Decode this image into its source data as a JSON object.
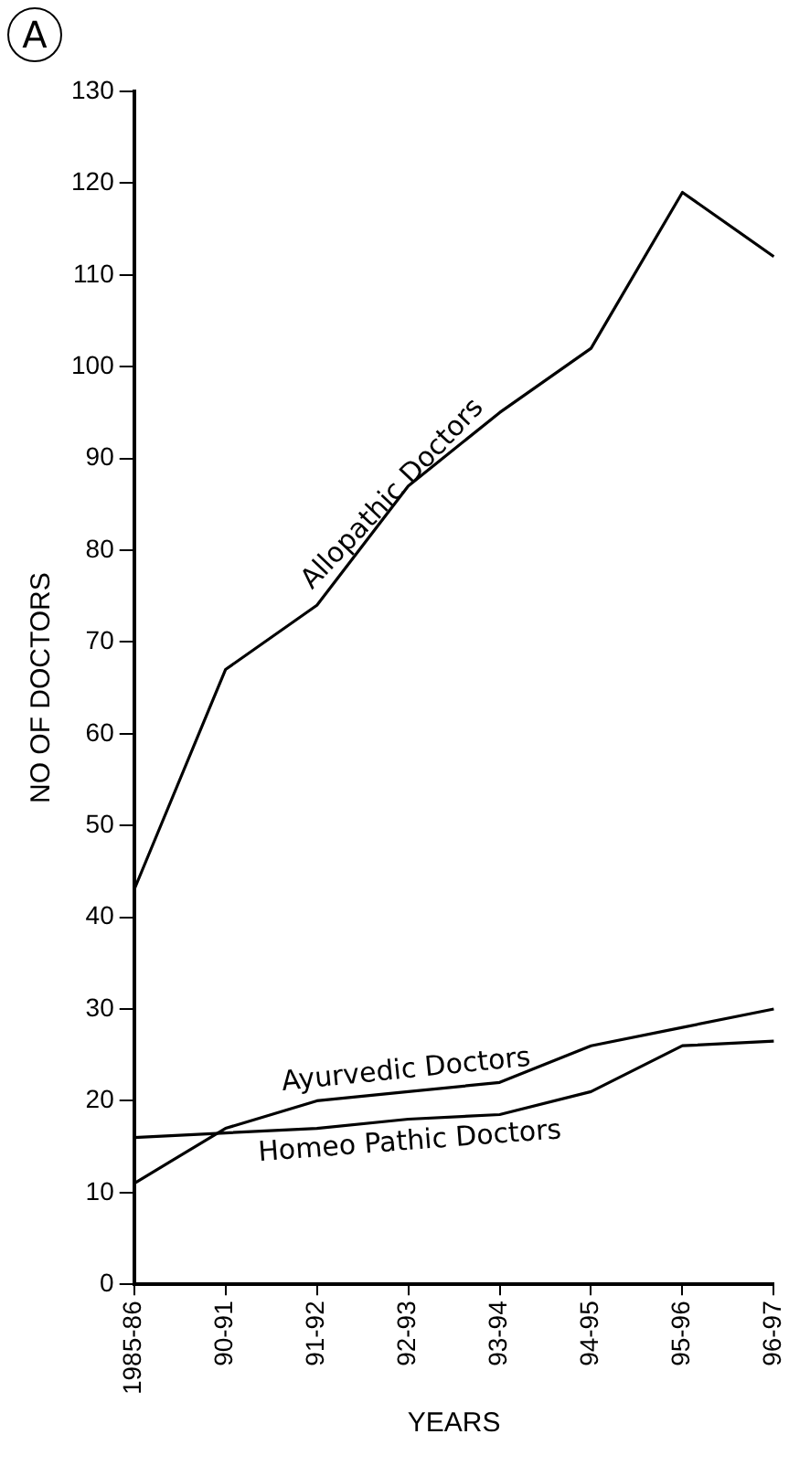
{
  "chart_data": {
    "type": "line",
    "xlabel": "YEARS",
    "ylabel": "NO OF DOCTORS",
    "annotations": [
      "A"
    ],
    "categories": [
      "1985-86",
      "90-91",
      "91-92",
      "92-93",
      "93-94",
      "94-95",
      "95-96",
      "96-97"
    ],
    "series": [
      {
        "name": "Allopathic Doctors",
        "color": "#000000",
        "values": [
          43,
          67,
          74,
          87,
          95,
          102,
          119,
          112
        ]
      },
      {
        "name": "Ayurvedic Doctors",
        "color": "#000000",
        "values": [
          11,
          17,
          20,
          21,
          22,
          26,
          28,
          30
        ]
      },
      {
        "name": "Homeo Pathic Doctors",
        "color": "#000000",
        "values": [
          16,
          16.5,
          17,
          18,
          18.5,
          21,
          26,
          26.5
        ]
      }
    ],
    "ylim": [
      0,
      130
    ],
    "yticks": [
      0,
      10,
      20,
      30,
      40,
      50,
      60,
      70,
      80,
      90,
      100,
      110,
      120,
      130
    ],
    "grid": false,
    "legend": false,
    "marker": "none",
    "line_style": "solid"
  }
}
